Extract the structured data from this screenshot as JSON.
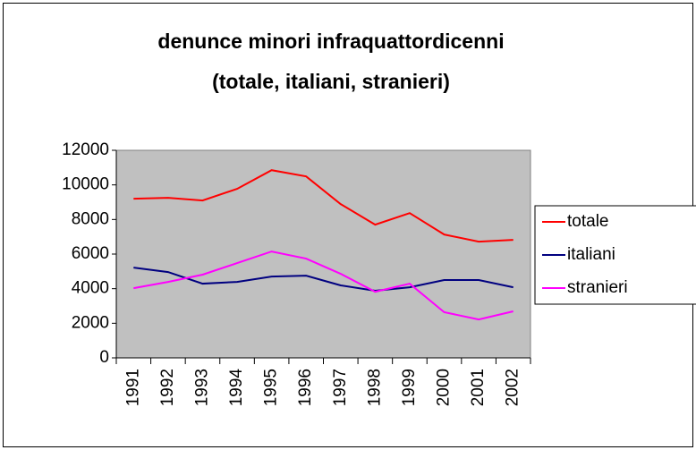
{
  "chart_data": {
    "type": "line",
    "title": [
      "denunce minori infraquattordicenni",
      "(totale, italiani, stranieri)"
    ],
    "categories": [
      "1991",
      "1992",
      "1993",
      "1994",
      "1995",
      "1996",
      "1997",
      "1998",
      "1999",
      "2000",
      "2001",
      "2002"
    ],
    "series": [
      {
        "name": "totale",
        "color": "#ff0000",
        "values": [
          9200,
          9250,
          9100,
          9770,
          10850,
          10490,
          8890,
          7700,
          8370,
          7130,
          6720,
          6820
        ]
      },
      {
        "name": "italiani",
        "color": "#000080",
        "values": [
          5220,
          4960,
          4290,
          4390,
          4700,
          4750,
          4190,
          3880,
          4080,
          4500,
          4500,
          4080
        ]
      },
      {
        "name": "stranieri",
        "color": "#ff00ff",
        "values": [
          4030,
          4390,
          4810,
          5480,
          6150,
          5740,
          4860,
          3820,
          4290,
          2640,
          2220,
          2690
        ]
      }
    ],
    "ylim": [
      0,
      12000
    ],
    "yticks": [
      0,
      2000,
      4000,
      6000,
      8000,
      10000,
      12000
    ],
    "grid": false,
    "legend": "right",
    "plot_background": "#c0c0c0"
  }
}
